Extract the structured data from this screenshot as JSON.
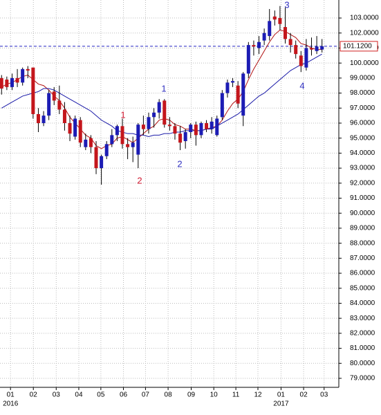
{
  "chart_data": {
    "type": "candlestick",
    "xlim": [
      -0.3,
      64.2
    ],
    "xticks": [
      {
        "value": 1.7,
        "label": "01"
      },
      {
        "value": 6.05,
        "label": "02"
      },
      {
        "value": 10.4,
        "label": "03"
      },
      {
        "value": 14.7,
        "label": "04"
      },
      {
        "value": 18.9,
        "label": "05"
      },
      {
        "value": 23.2,
        "label": "06"
      },
      {
        "value": 27.4,
        "label": "07"
      },
      {
        "value": 31.7,
        "label": "08"
      },
      {
        "value": 36.1,
        "label": "09"
      },
      {
        "value": 40.4,
        "label": "10"
      },
      {
        "value": 44.6,
        "label": "11"
      },
      {
        "value": 48.8,
        "label": "12"
      },
      {
        "value": 53.2,
        "label": "01"
      },
      {
        "value": 57.5,
        "label": "02"
      },
      {
        "value": 61.4,
        "label": "03"
      }
    ],
    "year_labels": [
      {
        "value": 1.7,
        "label": "2016"
      },
      {
        "value": 53.2,
        "label": "2017"
      }
    ],
    "ylim": [
      78.4,
      104.2
    ],
    "yticks": [
      {
        "value": 79,
        "label": "79.0000"
      },
      {
        "value": 80,
        "label": "80.0000"
      },
      {
        "value": 81,
        "label": "81.0000"
      },
      {
        "value": 82,
        "label": "82.0000"
      },
      {
        "value": 83,
        "label": "83.0000"
      },
      {
        "value": 84,
        "label": "84.0000"
      },
      {
        "value": 85,
        "label": "85.0000"
      },
      {
        "value": 86,
        "label": "86.0000"
      },
      {
        "value": 87,
        "label": "87.0000"
      },
      {
        "value": 88,
        "label": "88.0000"
      },
      {
        "value": 89,
        "label": "89.0000"
      },
      {
        "value": 90,
        "label": "90.0000"
      },
      {
        "value": 91,
        "label": "91.0000"
      },
      {
        "value": 92,
        "label": "92.0000"
      },
      {
        "value": 93,
        "label": "93.0000"
      },
      {
        "value": 94,
        "label": "94.0000"
      },
      {
        "value": 95,
        "label": "95.0000"
      },
      {
        "value": 96,
        "label": "96.0000"
      },
      {
        "value": 97,
        "label": "97.0000"
      },
      {
        "value": 98,
        "label": "98.0000"
      },
      {
        "value": 99,
        "label": "99.0000"
      },
      {
        "value": 100,
        "label": "100.0000"
      },
      {
        "value": 101,
        "label": "101.0000"
      },
      {
        "value": 102,
        "label": "102.0000"
      },
      {
        "value": 103,
        "label": "103.0000"
      }
    ],
    "grid": true,
    "up_color": "#1c1cb4",
    "down_color": "#c4161c",
    "open": [
      99.0,
      98.9,
      98.4,
      99.0,
      98.7,
      99.6,
      99.7,
      96.6,
      96.0,
      96.5,
      98.1,
      97.5,
      96.9,
      96.0,
      95.1,
      96.2,
      94.4,
      95.0,
      94.4,
      93.0,
      93.8,
      94.6,
      95.2,
      95.8,
      94.6,
      94.4,
      93.9,
      95.9,
      95.6,
      96.4,
      96.7,
      97.5,
      95.9,
      95.8,
      95.3,
      94.8,
      95.4,
      95.9,
      95.2,
      96.0,
      95.6,
      95.2,
      96.4,
      98.0,
      98.7,
      98.5,
      96.5,
      99.3,
      101.2,
      101.0,
      101.5,
      101.8,
      103.1,
      103.0,
      102.4,
      101.6,
      101.2,
      100.5,
      99.7,
      101.0,
      100.8,
      100.9
    ],
    "high": [
      99.2,
      99.1,
      99.3,
      99.6,
      99.7,
      99.8,
      99.7,
      97.0,
      96.8,
      98.2,
      98.4,
      98.5,
      97.4,
      96.5,
      96.5,
      96.4,
      95.3,
      95.2,
      94.8,
      93.9,
      94.8,
      95.6,
      95.9,
      96.3,
      95.0,
      95.1,
      96.0,
      96.5,
      96.7,
      97.0,
      97.6,
      97.6,
      96.4,
      96.0,
      95.8,
      95.6,
      96.0,
      96.1,
      96.1,
      96.2,
      96.4,
      96.5,
      98.2,
      98.9,
      99.0,
      98.8,
      99.4,
      101.4,
      101.5,
      101.8,
      102.3,
      103.6,
      103.5,
      103.8,
      103.7,
      102.0,
      101.5,
      100.8,
      101.6,
      101.7,
      101.8,
      101.6
    ],
    "low": [
      97.9,
      98.2,
      98.2,
      98.4,
      98.5,
      99.0,
      96.3,
      95.4,
      95.8,
      96.2,
      97.2,
      96.6,
      95.5,
      94.8,
      94.9,
      94.4,
      94.2,
      94.0,
      92.6,
      91.9,
      93.6,
      94.4,
      94.8,
      94.3,
      93.6,
      93.4,
      93.0,
      95.2,
      95.3,
      95.7,
      96.3,
      95.7,
      95.5,
      94.9,
      94.2,
      94.3,
      95.0,
      94.5,
      95.0,
      95.4,
      95.3,
      95.1,
      96.2,
      97.7,
      98.4,
      97.0,
      95.8,
      99.0,
      100.5,
      100.6,
      101.2,
      101.5,
      102.5,
      102.2,
      101.3,
      100.7,
      100.3,
      99.4,
      99.5,
      100.5,
      100.6,
      100.7
    ],
    "close": [
      98.3,
      98.4,
      99.0,
      98.7,
      99.6,
      99.5,
      96.6,
      96.0,
      96.5,
      98.0,
      97.5,
      96.9,
      96.0,
      95.3,
      96.3,
      94.7,
      94.9,
      94.4,
      93.0,
      93.8,
      94.6,
      95.2,
      95.8,
      94.6,
      94.4,
      94.7,
      95.9,
      95.6,
      96.4,
      96.7,
      97.4,
      95.9,
      95.8,
      95.3,
      94.7,
      95.4,
      95.9,
      95.2,
      96.0,
      95.6,
      96.1,
      96.3,
      98.0,
      98.7,
      98.8,
      97.3,
      99.3,
      101.2,
      101.1,
      101.4,
      102.0,
      102.8,
      102.9,
      102.6,
      101.6,
      101.2,
      100.6,
      99.8,
      101.0,
      100.9,
      101.1,
      101.12
    ],
    "series": [
      {
        "color": "#b01010",
        "values": [
          98.4,
          98.6,
          98.7,
          98.9,
          99.1,
          99.2,
          98.9,
          98.6,
          98.5,
          98.2,
          97.8,
          97.5,
          97.0,
          96.4,
          96.0,
          95.6,
          95.2,
          95.0,
          94.5,
          94.3,
          94.5,
          94.6,
          95.0,
          95.1,
          94.9,
          94.7,
          95.0,
          95.3,
          95.6,
          95.8,
          96.2,
          96.3,
          96.2,
          95.9,
          95.8,
          95.6,
          95.6,
          95.5,
          95.5,
          95.6,
          95.7,
          95.8,
          96.2,
          96.8,
          97.3,
          97.6,
          98.1,
          98.9,
          99.6,
          100.2,
          100.8,
          101.4,
          101.9,
          102.2,
          102.1,
          101.9,
          101.7,
          101.3,
          101.2,
          101.0,
          100.9,
          100.9
        ]
      },
      {
        "color": "#1a1aa8",
        "values": [
          97.0,
          97.2,
          97.4,
          97.6,
          97.8,
          97.9,
          98.0,
          98.1,
          98.3,
          98.3,
          98.2,
          98.0,
          97.8,
          97.6,
          97.4,
          97.2,
          97.0,
          96.8,
          96.5,
          96.2,
          96.0,
          95.8,
          95.5,
          95.4,
          95.3,
          95.3,
          95.2,
          95.2,
          95.1,
          95.2,
          95.2,
          95.3,
          95.3,
          95.4,
          95.4,
          95.5,
          95.5,
          95.5,
          95.5,
          95.6,
          95.6,
          95.8,
          96.0,
          96.2,
          96.4,
          96.6,
          96.9,
          97.2,
          97.5,
          97.8,
          98.0,
          98.3,
          98.6,
          98.9,
          99.2,
          99.5,
          99.7,
          99.9,
          100.0,
          100.2,
          100.4,
          100.6
        ]
      }
    ],
    "last": {
      "value": 101.12,
      "label": "101.1200",
      "color": "#2020c0"
    },
    "annotations": [
      {
        "text": "1",
        "color": "#d01830"
      },
      {
        "text": "2",
        "color": "#d01830"
      },
      {
        "text": "1",
        "color": "#3030c0"
      },
      {
        "text": "2",
        "color": "#3030c0"
      },
      {
        "text": "3",
        "color": "#3030c0"
      },
      {
        "text": "4",
        "color": "#3030c0"
      }
    ]
  }
}
